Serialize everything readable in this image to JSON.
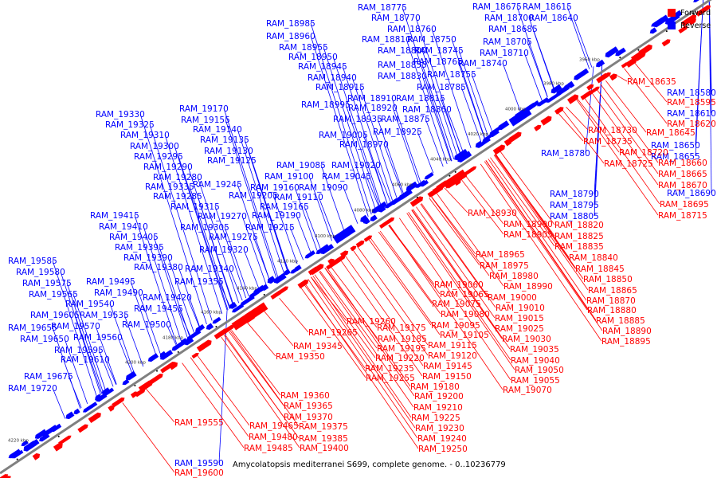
{
  "caption": "Amycolatopsis mediterranei S699, complete genome. - 0..10236779",
  "legend": [
    {
      "label": "Forward",
      "color": "#ff0000"
    },
    {
      "label": "Reverse",
      "color": "#0000ff"
    }
  ],
  "colors": {
    "forward": "#ff0000",
    "reverse": "#0000ff",
    "backbone": "#808080"
  },
  "ticks": [
    "3960 kbp",
    "3980 kbp",
    "4000 kbp",
    "4020 kbp",
    "4040 kbp",
    "4060 kbp",
    "4080 kbp",
    "4100 kbp",
    "4120 kbp",
    "4140 kbp",
    "4160 kbp",
    "4180 kbp",
    "4200 kbp",
    "4220 kbp"
  ],
  "reverse_labels": [
    "RAM_18775",
    "RAM_18770",
    "RAM_18760",
    "RAM_18810",
    "RAM_18750",
    "RAM_18800",
    "RAM_18745",
    "RAM_18855",
    "RAM_18765",
    "RAM_18740",
    "RAM_18830",
    "RAM_18755",
    "RAM_18675",
    "RAM_18615",
    "RAM_18700",
    "RAM_18640",
    "RAM_18685",
    "RAM_18705",
    "RAM_18710",
    "RAM_18985",
    "RAM_18960",
    "RAM_18955",
    "RAM_18950",
    "RAM_18945",
    "RAM_18940",
    "RAM_18915",
    "RAM_18785",
    "RAM_18910",
    "RAM_18815",
    "RAM_18995",
    "RAM_18920",
    "RAM_18860",
    "RAM_18935",
    "RAM_18875",
    "RAM_19005",
    "RAM_18925",
    "RAM_18970",
    "RAM_19330",
    "RAM_19170",
    "RAM_19325",
    "RAM_19155",
    "RAM_19310",
    "RAM_19140",
    "RAM_19300",
    "RAM_19135",
    "RAM_19295",
    "RAM_19130",
    "RAM_19290",
    "RAM_19125",
    "RAM_19085",
    "RAM_19280",
    "RAM_19020",
    "RAM_19100",
    "RAM_19045",
    "RAM_19335",
    "RAM_19245",
    "RAM_19160",
    "RAM_19090",
    "RAM_19285",
    "RAM_19205",
    "RAM_19110",
    "RAM_19315",
    "RAM_19165",
    "RAM_19270",
    "RAM_19190",
    "RAM_19305",
    "RAM_19215",
    "RAM_19275",
    "RAM_19320",
    "RAM_19415",
    "RAM_19410",
    "RAM_19405",
    "RAM_19395",
    "RAM_19390",
    "RAM_19380",
    "RAM_19340",
    "RAM_19355",
    "RAM_19585",
    "RAM_19580",
    "RAM_19575",
    "RAM_19495",
    "RAM_19565",
    "RAM_19490",
    "RAM_19540",
    "RAM_19420",
    "RAM_19455",
    "RAM_19605",
    "RAM_19535",
    "RAM_19570",
    "RAM_19500",
    "RAM_19655",
    "RAM_19560",
    "RAM_19650",
    "RAM_19595",
    "RAM_19610",
    "RAM_19675",
    "RAM_19720",
    "RAM_18780",
    "RAM_18790",
    "RAM_18795",
    "RAM_18805",
    "RAM_18580",
    "RAM_18610",
    "RAM_18650",
    "RAM_18655",
    "RAM_18690",
    "RAM_19590"
  ],
  "forward_labels": [
    "RAM_18635",
    "RAM_18595",
    "RAM_18620",
    "RAM_18645",
    "RAM_18660",
    "RAM_18665",
    "RAM_18670",
    "RAM_18695",
    "RAM_18715",
    "RAM_18730",
    "RAM_18735",
    "RAM_18720",
    "RAM_18725",
    "RAM_18930",
    "RAM_18900",
    "RAM_18905",
    "RAM_18820",
    "RAM_18825",
    "RAM_18835",
    "RAM_18840",
    "RAM_18845",
    "RAM_18850",
    "RAM_18865",
    "RAM_18870",
    "RAM_18880",
    "RAM_18885",
    "RAM_18890",
    "RAM_18895",
    "RAM_18965",
    "RAM_18975",
    "RAM_18980",
    "RAM_18990",
    "RAM_19000",
    "RAM_19060",
    "RAM_19065",
    "RAM_19075",
    "RAM_19080",
    "RAM_19010",
    "RAM_19015",
    "RAM_19025",
    "RAM_19030",
    "RAM_19035",
    "RAM_19040",
    "RAM_19050",
    "RAM_19055",
    "RAM_19070",
    "RAM_19260",
    "RAM_19265",
    "RAM_19175",
    "RAM_19185",
    "RAM_19195",
    "RAM_19105",
    "RAM_19095",
    "RAM_19115",
    "RAM_19120",
    "RAM_19220",
    "RAM_19235",
    "RAM_19255",
    "RAM_19145",
    "RAM_19150",
    "RAM_19180",
    "RAM_19200",
    "RAM_19210",
    "RAM_19225",
    "RAM_19230",
    "RAM_19240",
    "RAM_19250",
    "RAM_19345",
    "RAM_19350",
    "RAM_19360",
    "RAM_19365",
    "RAM_19370",
    "RAM_19375",
    "RAM_19385",
    "RAM_19400",
    "RAM_19465",
    "RAM_19480",
    "RAM_19485",
    "RAM_19555",
    "RAM_19600"
  ]
}
